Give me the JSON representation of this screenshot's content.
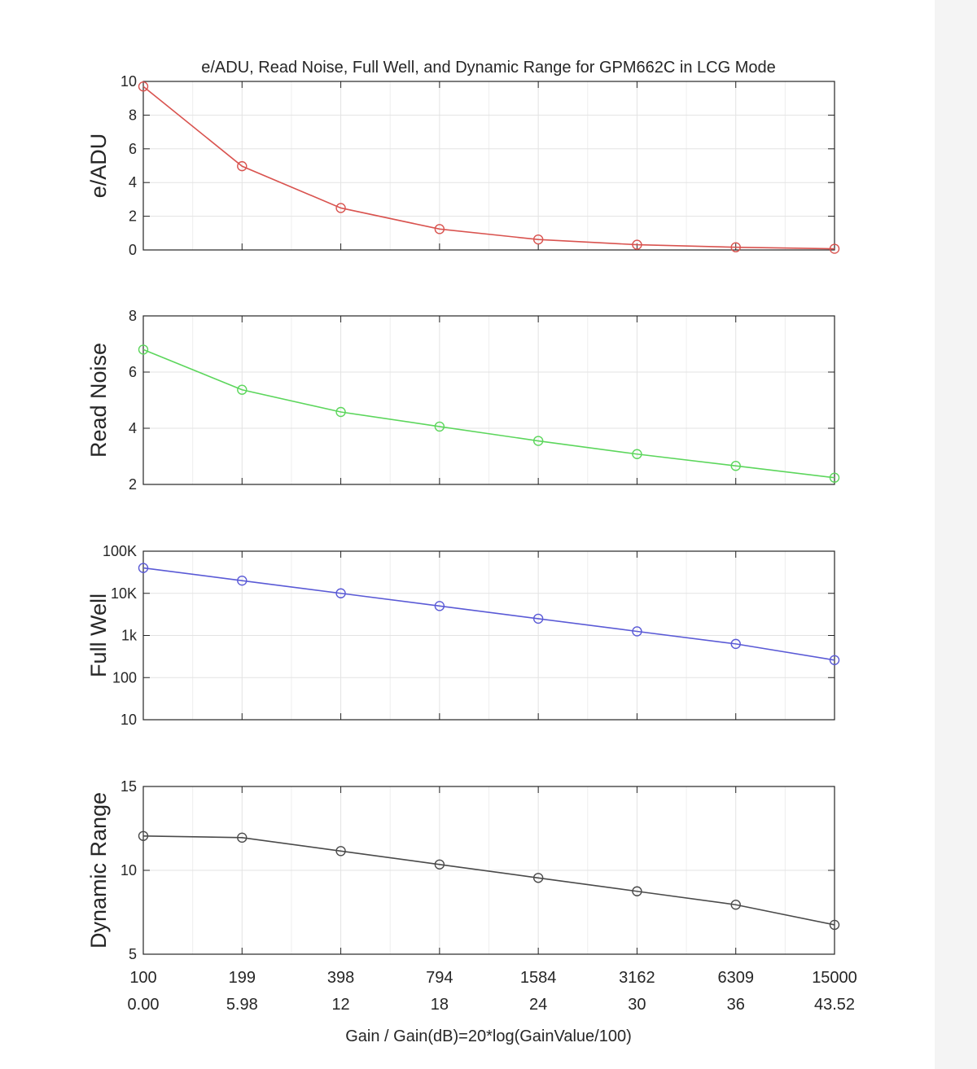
{
  "chart_data": {
    "title": "e/ADU, Read Noise, Full Well, and Dynamic Range for GPM662C in LCG Mode",
    "xlabel": "Gain / Gain(dB)=20*log(GainValue/100)",
    "categories": [
      "100",
      "199",
      "398",
      "794",
      "1584",
      "3162",
      "6309",
      "15000"
    ],
    "categories_db": [
      "0.00",
      "5.98",
      "12",
      "18",
      "24",
      "30",
      "36",
      "43.52"
    ],
    "grid": true,
    "panels": [
      {
        "type": "line",
        "ylabel": "e/ADU",
        "color": "#d9534f",
        "yscale": "linear",
        "ylim": [
          0,
          10
        ],
        "yticks": [
          0,
          2,
          4,
          6,
          8,
          10
        ],
        "ytick_labels": [
          "0",
          "2",
          "4",
          "6",
          "8",
          "10"
        ],
        "values": [
          9.7,
          4.97,
          2.49,
          1.24,
          0.62,
          0.31,
          0.16,
          0.07
        ]
      },
      {
        "type": "line",
        "ylabel": "Read Noise",
        "color": "#5cd65c",
        "yscale": "linear",
        "ylim": [
          2,
          8
        ],
        "yticks": [
          2,
          4,
          6,
          8
        ],
        "ytick_labels": [
          "2",
          "4",
          "6",
          "8"
        ],
        "values": [
          6.8,
          5.37,
          4.58,
          4.06,
          3.55,
          3.08,
          2.66,
          2.24
        ]
      },
      {
        "type": "line",
        "ylabel": "Full Well",
        "color": "#5a5ad6",
        "yscale": "log",
        "ylim": [
          10,
          100000
        ],
        "yticks": [
          10,
          100,
          1000,
          10000,
          100000
        ],
        "ytick_labels": [
          "10",
          "100",
          "1k",
          "10K",
          "100K"
        ],
        "values": [
          40000,
          20000,
          10000,
          5000,
          2500,
          1250,
          630,
          260
        ]
      },
      {
        "type": "line",
        "ylabel": "Dynamic Range",
        "color": "#4a4a4a",
        "yscale": "linear",
        "ylim": [
          5,
          15
        ],
        "yticks": [
          5,
          10,
          15
        ],
        "ytick_labels": [
          "5",
          "10",
          "15"
        ],
        "values": [
          12.05,
          11.95,
          11.15,
          10.35,
          9.55,
          8.75,
          7.95,
          6.75
        ]
      }
    ]
  }
}
